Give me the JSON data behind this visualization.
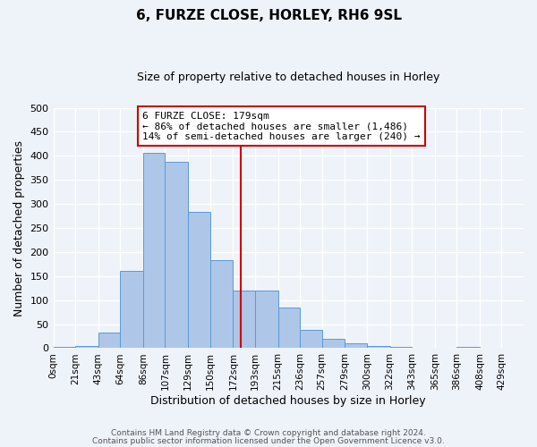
{
  "title": "6, FURZE CLOSE, HORLEY, RH6 9SL",
  "subtitle": "Size of property relative to detached houses in Horley",
  "xlabel": "Distribution of detached houses by size in Horley",
  "ylabel": "Number of detached properties",
  "bin_labels": [
    "0sqm",
    "21sqm",
    "43sqm",
    "64sqm",
    "86sqm",
    "107sqm",
    "129sqm",
    "150sqm",
    "172sqm",
    "193sqm",
    "215sqm",
    "236sqm",
    "257sqm",
    "279sqm",
    "300sqm",
    "322sqm",
    "343sqm",
    "365sqm",
    "386sqm",
    "408sqm",
    "429sqm"
  ],
  "bar_heights": [
    3,
    5,
    32,
    160,
    407,
    387,
    283,
    184,
    120,
    120,
    85,
    38,
    20,
    10,
    5,
    3,
    0,
    0,
    3,
    0,
    0
  ],
  "bar_color": "#aec6e8",
  "bar_edgecolor": "#5b9bd5",
  "reference_line_x": 179,
  "bin_edges": [
    0,
    21,
    43,
    64,
    86,
    107,
    129,
    150,
    172,
    193,
    215,
    236,
    257,
    279,
    300,
    322,
    343,
    365,
    386,
    408,
    429,
    450
  ],
  "ylim": [
    0,
    500
  ],
  "yticks": [
    0,
    50,
    100,
    150,
    200,
    250,
    300,
    350,
    400,
    450,
    500
  ],
  "annotation_title": "6 FURZE CLOSE: 179sqm",
  "annotation_line1": "← 86% of detached houses are smaller (1,486)",
  "annotation_line2": "14% of semi-detached houses are larger (240) →",
  "annotation_box_color": "#ffffff",
  "annotation_box_edgecolor": "#cc0000",
  "ref_line_color": "#cc0000",
  "background_color": "#eef2f9",
  "grid_color": "#ffffff",
  "footnote1": "Contains HM Land Registry data © Crown copyright and database right 2024.",
  "footnote2": "Contains public sector information licensed under the Open Government Licence v3.0."
}
